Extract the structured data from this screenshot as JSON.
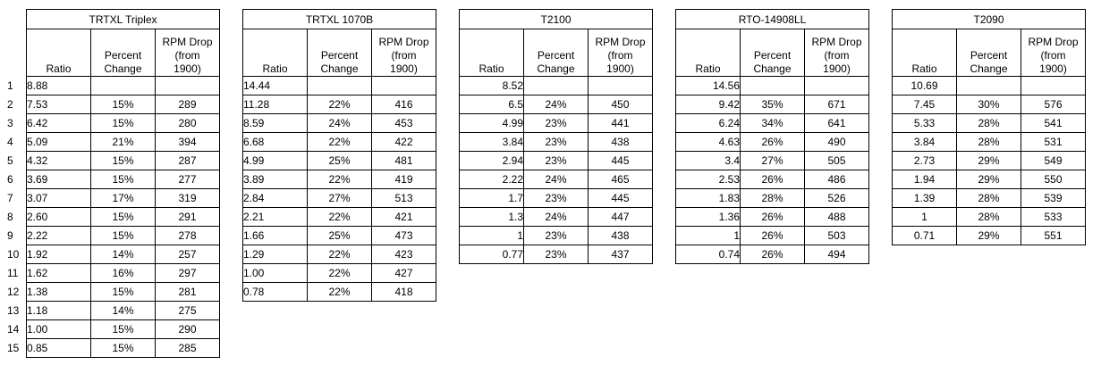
{
  "row_numbers": [
    "1",
    "2",
    "3",
    "4",
    "5",
    "6",
    "7",
    "8",
    "9",
    "10",
    "11",
    "12",
    "13",
    "14",
    "15"
  ],
  "headers": {
    "ratio": "Ratio",
    "percent_line1": "Percent",
    "percent_line2": "Change",
    "rpm_line1": "RPM Drop",
    "rpm_line2": "(from",
    "rpm_line3": "1900)"
  },
  "tables": [
    {
      "title": "TRTXL Triplex",
      "align": "left",
      "rows": [
        [
          "8.88",
          "",
          ""
        ],
        [
          "7.53",
          "15%",
          "289"
        ],
        [
          "6.42",
          "15%",
          "280"
        ],
        [
          "5.09",
          "21%",
          "394"
        ],
        [
          "4.32",
          "15%",
          "287"
        ],
        [
          "3.69",
          "15%",
          "277"
        ],
        [
          "3.07",
          "17%",
          "319"
        ],
        [
          "2.60",
          "15%",
          "291"
        ],
        [
          "2.22",
          "15%",
          "278"
        ],
        [
          "1.92",
          "14%",
          "257"
        ],
        [
          "1.62",
          "16%",
          "297"
        ],
        [
          "1.38",
          "15%",
          "281"
        ],
        [
          "1.18",
          "14%",
          "275"
        ],
        [
          "1.00",
          "15%",
          "290"
        ],
        [
          "0.85",
          "15%",
          "285"
        ]
      ]
    },
    {
      "title": "TRTXL 1070B",
      "align": "left",
      "rows": [
        [
          "14.44",
          "",
          ""
        ],
        [
          "11.28",
          "22%",
          "416"
        ],
        [
          "8.59",
          "24%",
          "453"
        ],
        [
          "6.68",
          "22%",
          "422"
        ],
        [
          "4.99",
          "25%",
          "481"
        ],
        [
          "3.89",
          "22%",
          "419"
        ],
        [
          "2.84",
          "27%",
          "513"
        ],
        [
          "2.21",
          "22%",
          "421"
        ],
        [
          "1.66",
          "25%",
          "473"
        ],
        [
          "1.29",
          "22%",
          "423"
        ],
        [
          "1.00",
          "22%",
          "427"
        ],
        [
          "0.78",
          "22%",
          "418"
        ]
      ]
    },
    {
      "title": "T2100",
      "align": "right",
      "rows": [
        [
          "8.52",
          "",
          ""
        ],
        [
          "6.5",
          "24%",
          "450"
        ],
        [
          "4.99",
          "23%",
          "441"
        ],
        [
          "3.84",
          "23%",
          "438"
        ],
        [
          "2.94",
          "23%",
          "445"
        ],
        [
          "2.22",
          "24%",
          "465"
        ],
        [
          "1.7",
          "23%",
          "445"
        ],
        [
          "1.3",
          "24%",
          "447"
        ],
        [
          "1",
          "23%",
          "438"
        ],
        [
          "0.77",
          "23%",
          "437"
        ]
      ]
    },
    {
      "title": "RTO-14908LL",
      "align": "right",
      "rows": [
        [
          "14.56",
          "",
          ""
        ],
        [
          "9.42",
          "35%",
          "671"
        ],
        [
          "6.24",
          "34%",
          "641"
        ],
        [
          "4.63",
          "26%",
          "490"
        ],
        [
          "3.4",
          "27%",
          "505"
        ],
        [
          "2.53",
          "26%",
          "486"
        ],
        [
          "1.83",
          "28%",
          "526"
        ],
        [
          "1.36",
          "26%",
          "488"
        ],
        [
          "1",
          "26%",
          "503"
        ],
        [
          "0.74",
          "26%",
          "494"
        ]
      ]
    },
    {
      "title": "T2090",
      "align": "center",
      "rows": [
        [
          "10.69",
          "",
          ""
        ],
        [
          "7.45",
          "30%",
          "576"
        ],
        [
          "5.33",
          "28%",
          "541"
        ],
        [
          "3.84",
          "28%",
          "531"
        ],
        [
          "2.73",
          "29%",
          "549"
        ],
        [
          "1.94",
          "29%",
          "550"
        ],
        [
          "1.39",
          "28%",
          "539"
        ],
        [
          "1",
          "28%",
          "533"
        ],
        [
          "0.71",
          "29%",
          "551"
        ]
      ]
    }
  ]
}
